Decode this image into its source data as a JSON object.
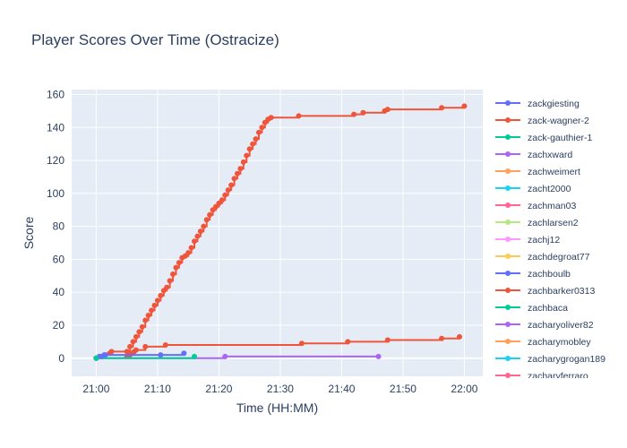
{
  "chart_data": {
    "type": "line",
    "title": "Player Scores Over Time (Ostracize)",
    "xlabel": "Time (HH:MM)",
    "ylabel": "Score",
    "x_ticks": [
      "21:00",
      "21:10",
      "21:20",
      "21:30",
      "21:40",
      "21:50",
      "22:00"
    ],
    "y_ticks": [
      0,
      20,
      40,
      60,
      80,
      100,
      120,
      140,
      160
    ],
    "xlim_minutes_after_2100": [
      -4,
      63
    ],
    "ylim": [
      -11,
      163
    ],
    "grid": true,
    "legend_position": "right",
    "series": [
      {
        "name": "zackgiesting",
        "color": "#636efa",
        "points": [
          [
            0.8,
            1
          ],
          [
            1.3,
            2
          ],
          [
            10.5,
            2
          ],
          [
            14.3,
            3
          ]
        ]
      },
      {
        "name": "zack-wagner-2",
        "color": "#ef553b",
        "points": [
          [
            2.2,
            3
          ],
          [
            2.5,
            4
          ],
          [
            5.0,
            4
          ],
          [
            5.5,
            7
          ],
          [
            6.0,
            10
          ],
          [
            6.5,
            13
          ],
          [
            7.0,
            16
          ],
          [
            7.5,
            19
          ],
          [
            8.0,
            23
          ],
          [
            8.5,
            26
          ],
          [
            9.0,
            29
          ],
          [
            9.5,
            32
          ],
          [
            10.0,
            35
          ],
          [
            10.5,
            38
          ],
          [
            11.0,
            41
          ],
          [
            11.5,
            43
          ],
          [
            12.0,
            47
          ],
          [
            12.5,
            51
          ],
          [
            13.0,
            55
          ],
          [
            13.5,
            58
          ],
          [
            14.0,
            61
          ],
          [
            14.5,
            62
          ],
          [
            15.0,
            64
          ],
          [
            15.5,
            67
          ],
          [
            16.0,
            71
          ],
          [
            16.5,
            74
          ],
          [
            17.0,
            77
          ],
          [
            17.5,
            80
          ],
          [
            18.0,
            84
          ],
          [
            18.5,
            87
          ],
          [
            19.0,
            90
          ],
          [
            19.5,
            92
          ],
          [
            20.0,
            94
          ],
          [
            20.5,
            96
          ],
          [
            21.0,
            99
          ],
          [
            21.5,
            102
          ],
          [
            22.0,
            105
          ],
          [
            22.5,
            109
          ],
          [
            23.0,
            112
          ],
          [
            23.5,
            115
          ],
          [
            24.0,
            119
          ],
          [
            24.5,
            123
          ],
          [
            25.0,
            127
          ],
          [
            25.5,
            130
          ],
          [
            26.0,
            133
          ],
          [
            26.5,
            137
          ],
          [
            27.0,
            140
          ],
          [
            27.5,
            143
          ],
          [
            28.0,
            145
          ],
          [
            28.5,
            146
          ],
          [
            33.0,
            147
          ],
          [
            42.0,
            148
          ],
          [
            43.5,
            149
          ],
          [
            47.0,
            150
          ],
          [
            47.5,
            151
          ],
          [
            56.3,
            152
          ],
          [
            60.0,
            153
          ]
        ]
      },
      {
        "name": "zack-gauthier-1",
        "color": "#00cc96",
        "points": [
          [
            0,
            0
          ],
          [
            16.0,
            1
          ]
        ]
      },
      {
        "name": "zachxward",
        "color": "#ab63fa",
        "points": [
          [
            0,
            0
          ],
          [
            21.0,
            1
          ],
          [
            46.0,
            1
          ]
        ]
      },
      {
        "name": "zachweimert",
        "color": "#ffa15a",
        "points": [
          [
            0,
            0
          ]
        ]
      },
      {
        "name": "zacht2000",
        "color": "#19d3f3",
        "points": [
          [
            0,
            0
          ]
        ]
      },
      {
        "name": "zachman03",
        "color": "#ff6692",
        "points": [
          [
            0,
            0
          ]
        ]
      },
      {
        "name": "zachlarsen2",
        "color": "#b6e880",
        "points": [
          [
            0,
            0
          ]
        ]
      },
      {
        "name": "zachj12",
        "color": "#ff97ff",
        "points": [
          [
            0,
            0
          ]
        ]
      },
      {
        "name": "zachdegroat77",
        "color": "#fecb52",
        "points": [
          [
            0,
            0
          ]
        ]
      },
      {
        "name": "zachboulb",
        "color": "#636efa",
        "points": [
          [
            0,
            0
          ],
          [
            0.5,
            1
          ],
          [
            1.5,
            2
          ]
        ]
      },
      {
        "name": "zachbarker0313",
        "color": "#ef553b",
        "points": [
          [
            5.0,
            1
          ],
          [
            5.5,
            2
          ],
          [
            5.8,
            3
          ],
          [
            6.2,
            4
          ],
          [
            6.5,
            5
          ],
          [
            8.0,
            7
          ],
          [
            11.3,
            8
          ],
          [
            33.5,
            9
          ],
          [
            41.0,
            10
          ],
          [
            47.5,
            11
          ],
          [
            56.3,
            12
          ],
          [
            59.2,
            13
          ]
        ]
      },
      {
        "name": "zachbaca",
        "color": "#00cc96",
        "points": [
          [
            0,
            0
          ]
        ]
      },
      {
        "name": "zacharyoliver82",
        "color": "#ab63fa",
        "points": [
          [
            0,
            0
          ]
        ]
      },
      {
        "name": "zacharymobley",
        "color": "#ffa15a",
        "points": [
          [
            0,
            0
          ]
        ]
      },
      {
        "name": "zacharygrogan189",
        "color": "#19d3f3",
        "points": [
          [
            0,
            0
          ]
        ]
      },
      {
        "name": "zacharyferraro",
        "color": "#ff6692",
        "points": [
          [
            0,
            0
          ]
        ]
      }
    ]
  }
}
